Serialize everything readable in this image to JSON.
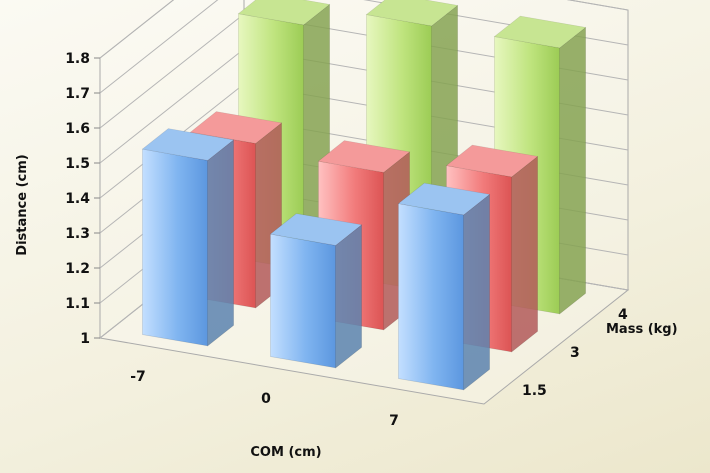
{
  "chart_data": {
    "type": "bar",
    "subtype": "3d-column",
    "title": "",
    "xlabel": "COM (cm)",
    "ylabel": "Distance (cm)",
    "zlabel": "Mass (kg)",
    "categories": [
      "-7",
      "0",
      "7"
    ],
    "yticks": [
      "1",
      "1.1",
      "1.2",
      "1.3",
      "1.4",
      "1.5",
      "1.6",
      "1.7",
      "1.8"
    ],
    "ylim": [
      1,
      1.8
    ],
    "grid": true,
    "legend": "none",
    "series": [
      {
        "name": "4",
        "color": "#b4dc6e",
        "values": [
          1.7,
          1.76,
          1.76
        ]
      },
      {
        "name": "3",
        "color": "#f07878",
        "values": [
          1.47,
          1.45,
          1.5
        ]
      },
      {
        "name": "1.5",
        "color": "#7ab0ec",
        "values": [
          1.53,
          1.35,
          1.5
        ]
      }
    ]
  }
}
